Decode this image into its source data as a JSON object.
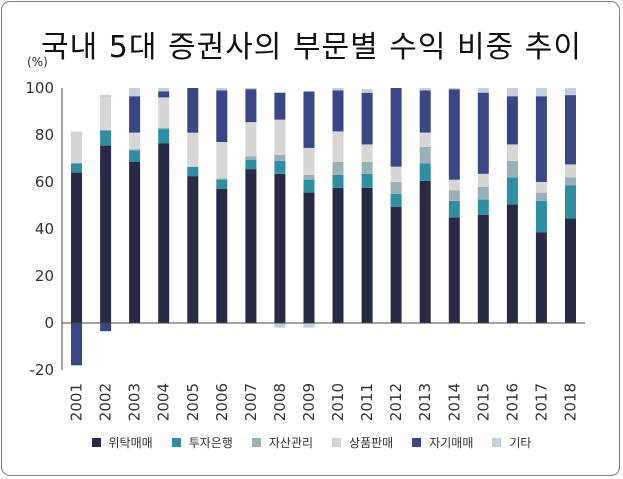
{
  "chart_data": {
    "type": "bar",
    "stacked": true,
    "title": "국내 5대 증권사의 부문별 수익 비중 추이",
    "unit_label": "(%)",
    "ylim": [
      -20,
      100
    ],
    "yticks": [
      "-20",
      "0",
      "20",
      "40",
      "60",
      "80",
      "100"
    ],
    "grid": false,
    "legend_position": "bottom",
    "categories": [
      "2001",
      "2002",
      "2003",
      "2004",
      "2005",
      "2006",
      "2007",
      "2008",
      "2009",
      "2010",
      "2011",
      "2012",
      "2013",
      "2014",
      "2015",
      "2016",
      "2017",
      "2018"
    ],
    "series": [
      {
        "name": "위탁매매",
        "color": "#2a2a44",
        "values": [
          64,
          75.5,
          68.5,
          76.5,
          62.5,
          57,
          65.5,
          63.5,
          55.5,
          57.5,
          57.5,
          49.5,
          60.5,
          45,
          46,
          50.5,
          38.5,
          44.5
        ]
      },
      {
        "name": "투자은행",
        "color": "#2f8ea1",
        "values": [
          4,
          6.5,
          5,
          6,
          4,
          4,
          4,
          5.5,
          5.5,
          5.5,
          6,
          5.5,
          7.5,
          7,
          6.5,
          11.5,
          13.5,
          14
        ]
      },
      {
        "name": "자산관리",
        "color": "#99b0b8",
        "values": [
          0,
          0,
          0.5,
          0.5,
          0,
          0.5,
          1.5,
          2.5,
          2,
          5.5,
          5,
          5,
          7,
          4.5,
          5.5,
          7,
          3.5,
          3.5
        ]
      },
      {
        "name": "상품판매",
        "color": "#d6d6d6",
        "values": [
          13.5,
          14,
          7,
          13,
          14.5,
          15.5,
          14.5,
          15,
          11.5,
          13,
          7.5,
          6.5,
          6,
          4.5,
          5.5,
          7,
          4.5,
          5.5
        ]
      },
      {
        "name": "자기매매",
        "color": "#3a4785",
        "values": [
          -18,
          -3.5,
          15.5,
          2.5,
          19,
          22,
          14,
          11.5,
          24,
          17.5,
          22,
          33.5,
          18,
          38.5,
          34.5,
          20.5,
          36.5,
          29.5
        ]
      },
      {
        "name": "기타",
        "color": "#c2cfe0",
        "values": [
          0,
          1,
          3.5,
          1.5,
          0,
          1,
          0.5,
          -2,
          -2,
          1,
          1.5,
          0,
          1,
          0.5,
          2,
          3.5,
          3.5,
          3
        ]
      }
    ]
  }
}
